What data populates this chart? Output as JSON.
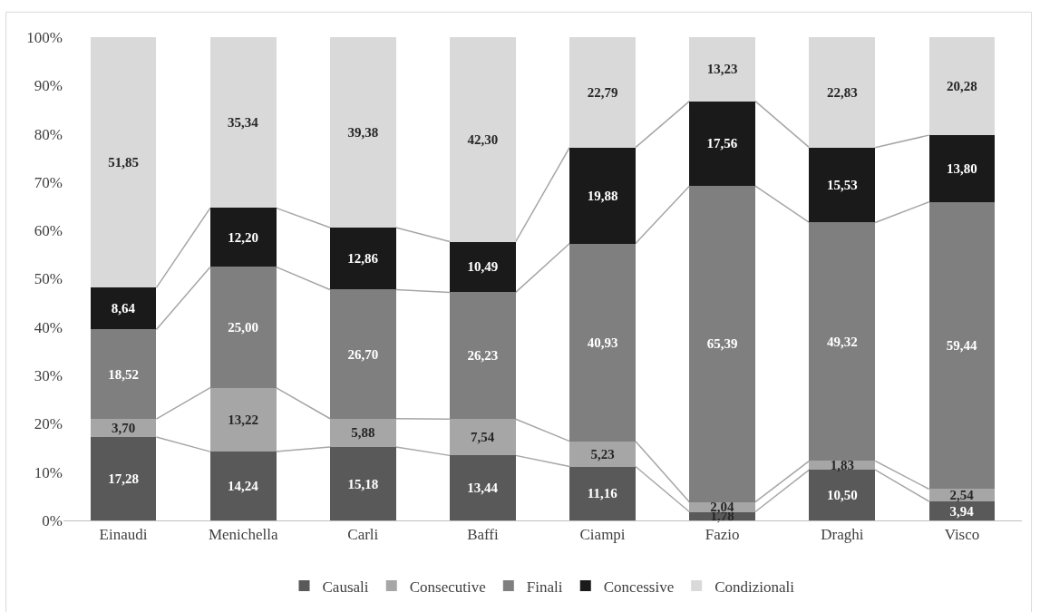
{
  "chart_data": {
    "type": "bar",
    "stacked": true,
    "categories": [
      "Einaudi",
      "Menichella",
      "Carli",
      "Baffi",
      "Ciampi",
      "Fazio",
      "Draghi",
      "Visco"
    ],
    "ylim": [
      0,
      100
    ],
    "yticks": [
      {
        "value": 0,
        "label": "0%"
      },
      {
        "value": 10,
        "label": "10%"
      },
      {
        "value": 20,
        "label": "20%"
      },
      {
        "value": 30,
        "label": "30%"
      },
      {
        "value": 40,
        "label": "40%"
      },
      {
        "value": 50,
        "label": "50%"
      },
      {
        "value": 60,
        "label": "60%"
      },
      {
        "value": 70,
        "label": "70%"
      },
      {
        "value": 80,
        "label": "80%"
      },
      {
        "value": 90,
        "label": "90%"
      },
      {
        "value": 100,
        "label": "100%"
      }
    ],
    "grid": false,
    "legend": "bottom",
    "series": [
      {
        "name": "Causali",
        "color": "#595959",
        "values": [
          17.28,
          14.24,
          15.18,
          13.44,
          11.16,
          1.78,
          10.5,
          3.94
        ],
        "value_labels": [
          "17,28",
          "14,24",
          "15,18",
          "13,44",
          "11,16",
          "1,78",
          "10,50",
          "3,94"
        ]
      },
      {
        "name": "Consecutive",
        "color": "#a6a6a6",
        "values": [
          3.7,
          13.22,
          5.88,
          7.54,
          5.23,
          2.04,
          1.83,
          2.54
        ],
        "value_labels": [
          "3,70",
          "13,22",
          "5,88",
          "7,54",
          "5,23",
          "2,04",
          "1,83",
          "2,54"
        ]
      },
      {
        "name": "Finali",
        "color": "#7f7f7f",
        "values": [
          18.52,
          25.0,
          26.7,
          26.23,
          40.93,
          65.39,
          49.32,
          59.44
        ],
        "value_labels": [
          "18,52",
          "25,00",
          "26,70",
          "26,23",
          "40,93",
          "65,39",
          "49,32",
          "59,44"
        ]
      },
      {
        "name": "Concessive",
        "color": "#1a1a1a",
        "values": [
          8.64,
          12.2,
          12.86,
          10.49,
          19.88,
          17.56,
          15.53,
          13.8
        ],
        "value_labels": [
          "8,64",
          "12,20",
          "12,86",
          "10,49",
          "19,88",
          "17,56",
          "15,53",
          "13,80"
        ]
      },
      {
        "name": "Condizionali",
        "color": "#d9d9d9",
        "values": [
          51.85,
          35.34,
          39.38,
          42.3,
          22.79,
          13.23,
          22.83,
          20.28
        ],
        "value_labels": [
          "51,85",
          "35,34",
          "39,38",
          "42,30",
          "22,79",
          "13,23",
          "22,83",
          "20,28"
        ]
      }
    ]
  }
}
